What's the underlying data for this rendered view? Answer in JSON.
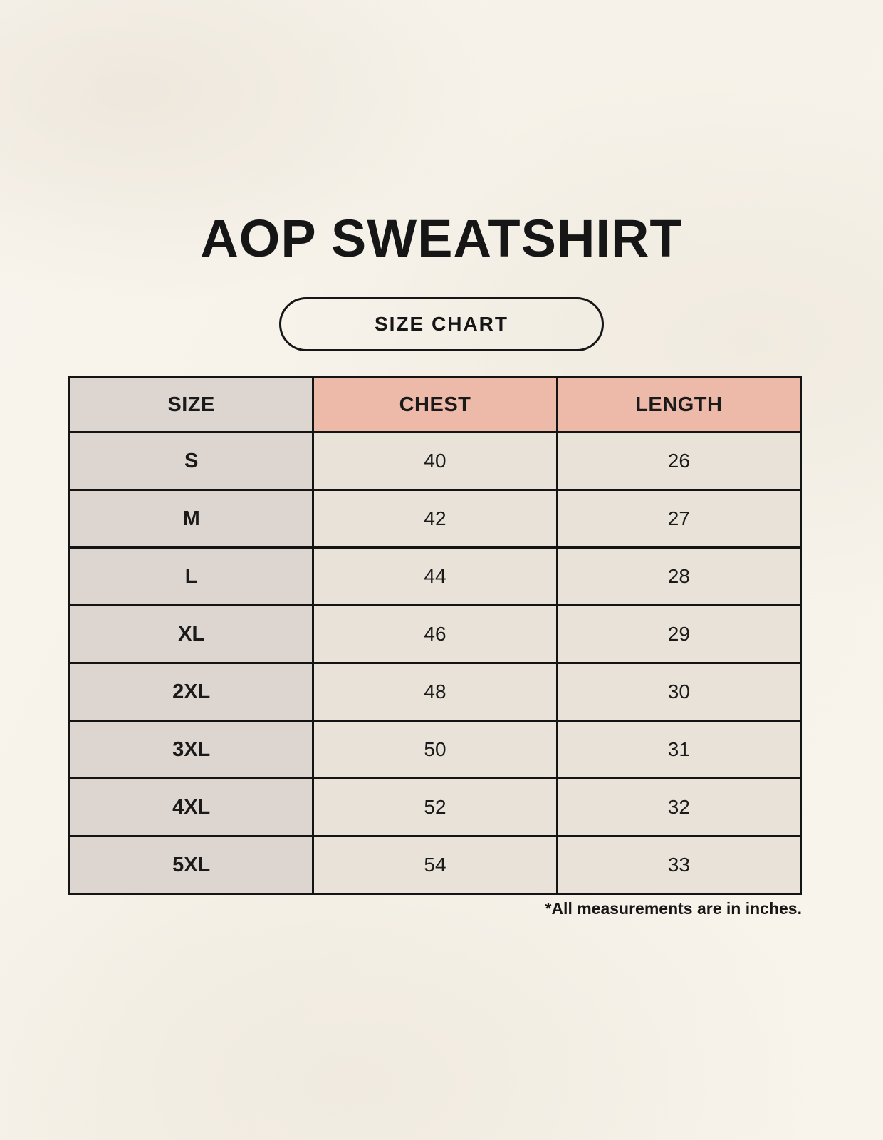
{
  "page": {
    "title": "AOP SWEATSHIRT",
    "badge_label": "SIZE CHART",
    "footnote": "*All measurements are in inches."
  },
  "chart_data": {
    "type": "table",
    "columns": [
      "SIZE",
      "CHEST",
      "LENGTH"
    ],
    "rows": [
      [
        "S",
        "40",
        "26"
      ],
      [
        "M",
        "42",
        "27"
      ],
      [
        "L",
        "44",
        "28"
      ],
      [
        "XL",
        "46",
        "29"
      ],
      [
        "2XL",
        "48",
        "30"
      ],
      [
        "3XL",
        "50",
        "31"
      ],
      [
        "4XL",
        "52",
        "32"
      ],
      [
        "5XL",
        "54",
        "33"
      ]
    ],
    "units": "inches",
    "layout_hints": {
      "header_fill_size_column": "#dcd5d0",
      "header_fill_measurements": "#edb9a8",
      "data_cell_fill": "#e9e2d8",
      "size_column_fill": "#dcd5d0",
      "border_color": "#141414",
      "page_background": "#f8f4ec",
      "text_color": "#1a1a1a"
    }
  }
}
